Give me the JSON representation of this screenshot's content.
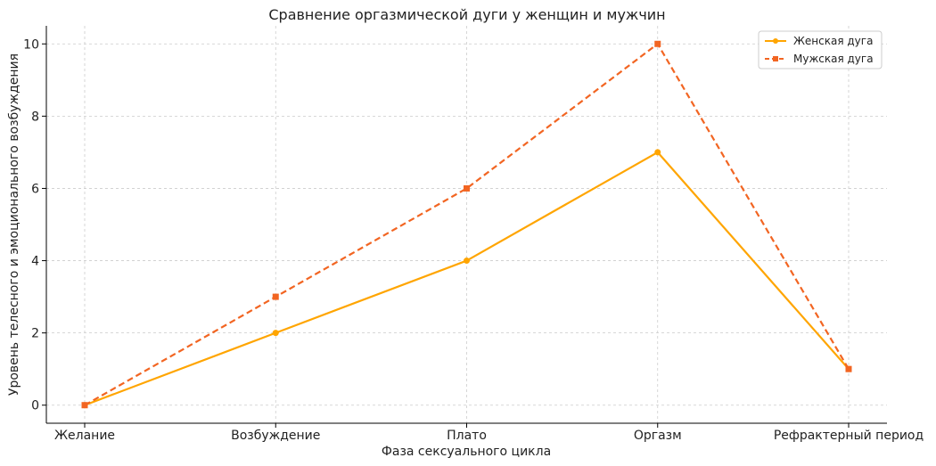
{
  "chart_data": {
    "type": "line",
    "title": "Сравнение оргазмической дуги у женщин и мужчин",
    "xlabel": "Фаза сексуального цикла",
    "ylabel": "Уровень телесного и эмоционального возбуждения",
    "categories": [
      "Желание",
      "Возбуждение",
      "Плато",
      "Оргазм",
      "Рефрактерный период"
    ],
    "ylim": [
      -0.5,
      10.5
    ],
    "yticks": [
      0,
      2,
      4,
      6,
      8,
      10
    ],
    "grid": true,
    "legend_position": "top-right",
    "series": [
      {
        "name": "Женская дуга",
        "values": [
          0,
          2,
          4,
          7,
          1
        ],
        "color": "#FFA500",
        "style": "solid",
        "marker": "circle"
      },
      {
        "name": "Мужская дуга",
        "values": [
          0,
          3,
          6,
          10,
          1
        ],
        "color": "#F26522",
        "style": "dashed",
        "marker": "square"
      }
    ]
  }
}
